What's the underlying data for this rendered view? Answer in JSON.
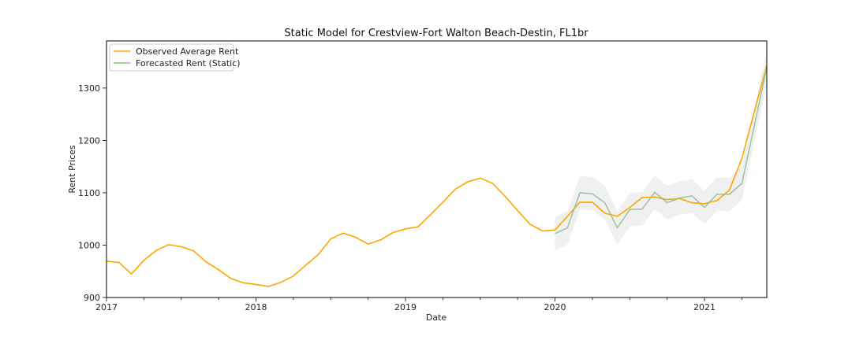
{
  "chart_data": {
    "type": "line",
    "title": "Static Model for Crestview-Fort Walton Beach-Destin, FL1br",
    "xlabel": "Date",
    "ylabel": "Rent Prices",
    "xlim": [
      "2017-01",
      "2021-06"
    ],
    "ylim": [
      900,
      1390
    ],
    "x_ticks": [
      "2017",
      "2018",
      "2019",
      "2020",
      "2021"
    ],
    "y_ticks": [
      900,
      1000,
      1100,
      1200,
      1300
    ],
    "legend_position": "top-left",
    "grid": false,
    "series": [
      {
        "name": "Observed Average Rent",
        "color": "#ffa500",
        "x": [
          "2017-01",
          "2017-02",
          "2017-03",
          "2017-04",
          "2017-05",
          "2017-06",
          "2017-07",
          "2017-08",
          "2017-09",
          "2017-10",
          "2017-11",
          "2017-12",
          "2018-01",
          "2018-02",
          "2018-03",
          "2018-04",
          "2018-05",
          "2018-06",
          "2018-07",
          "2018-08",
          "2018-09",
          "2018-10",
          "2018-11",
          "2018-12",
          "2019-01",
          "2019-02",
          "2019-03",
          "2019-04",
          "2019-05",
          "2019-06",
          "2019-07",
          "2019-08",
          "2019-09",
          "2019-10",
          "2019-11",
          "2019-12",
          "2020-01",
          "2020-02",
          "2020-03",
          "2020-04",
          "2020-05",
          "2020-06",
          "2020-07",
          "2020-08",
          "2020-09",
          "2020-10",
          "2020-11",
          "2020-12",
          "2021-01",
          "2021-02",
          "2021-03",
          "2021-04",
          "2021-05",
          "2021-06"
        ],
        "values": [
          969,
          967,
          945,
          971,
          990,
          1001,
          997,
          989,
          968,
          953,
          936,
          928,
          925,
          921,
          929,
          941,
          962,
          982,
          1012,
          1023,
          1015,
          1002,
          1010,
          1024,
          1031,
          1035,
          1058,
          1082,
          1107,
          1121,
          1128,
          1118,
          1093,
          1066,
          1040,
          1027,
          1029,
          1055,
          1082,
          1082,
          1061,
          1055,
          1072,
          1091,
          1092,
          1087,
          1089,
          1081,
          1079,
          1085,
          1105,
          1165,
          1255,
          1343
        ]
      },
      {
        "name": "Forecasted Rent (Static)",
        "color": "#90c090",
        "x": [
          "2020-01",
          "2020-02",
          "2020-03",
          "2020-04",
          "2020-05",
          "2020-06",
          "2020-07",
          "2020-08",
          "2020-09",
          "2020-10",
          "2020-11",
          "2020-12",
          "2021-01",
          "2021-02",
          "2021-03",
          "2021-04",
          "2021-05",
          "2021-06"
        ],
        "values": [
          1022,
          1033,
          1100,
          1098,
          1081,
          1033,
          1068,
          1069,
          1101,
          1081,
          1090,
          1094,
          1072,
          1097,
          1097,
          1118,
          1228,
          1340
        ],
        "ci_lower": [
          990,
          1001,
          1068,
          1066,
          1049,
          1001,
          1036,
          1037,
          1069,
          1049,
          1058,
          1062,
          1040,
          1065,
          1065,
          1086,
          1196,
          1308
        ],
        "ci_upper": [
          1054,
          1065,
          1132,
          1130,
          1113,
          1065,
          1100,
          1101,
          1133,
          1113,
          1122,
          1126,
          1104,
          1129,
          1129,
          1150,
          1260,
          1372
        ]
      }
    ]
  }
}
